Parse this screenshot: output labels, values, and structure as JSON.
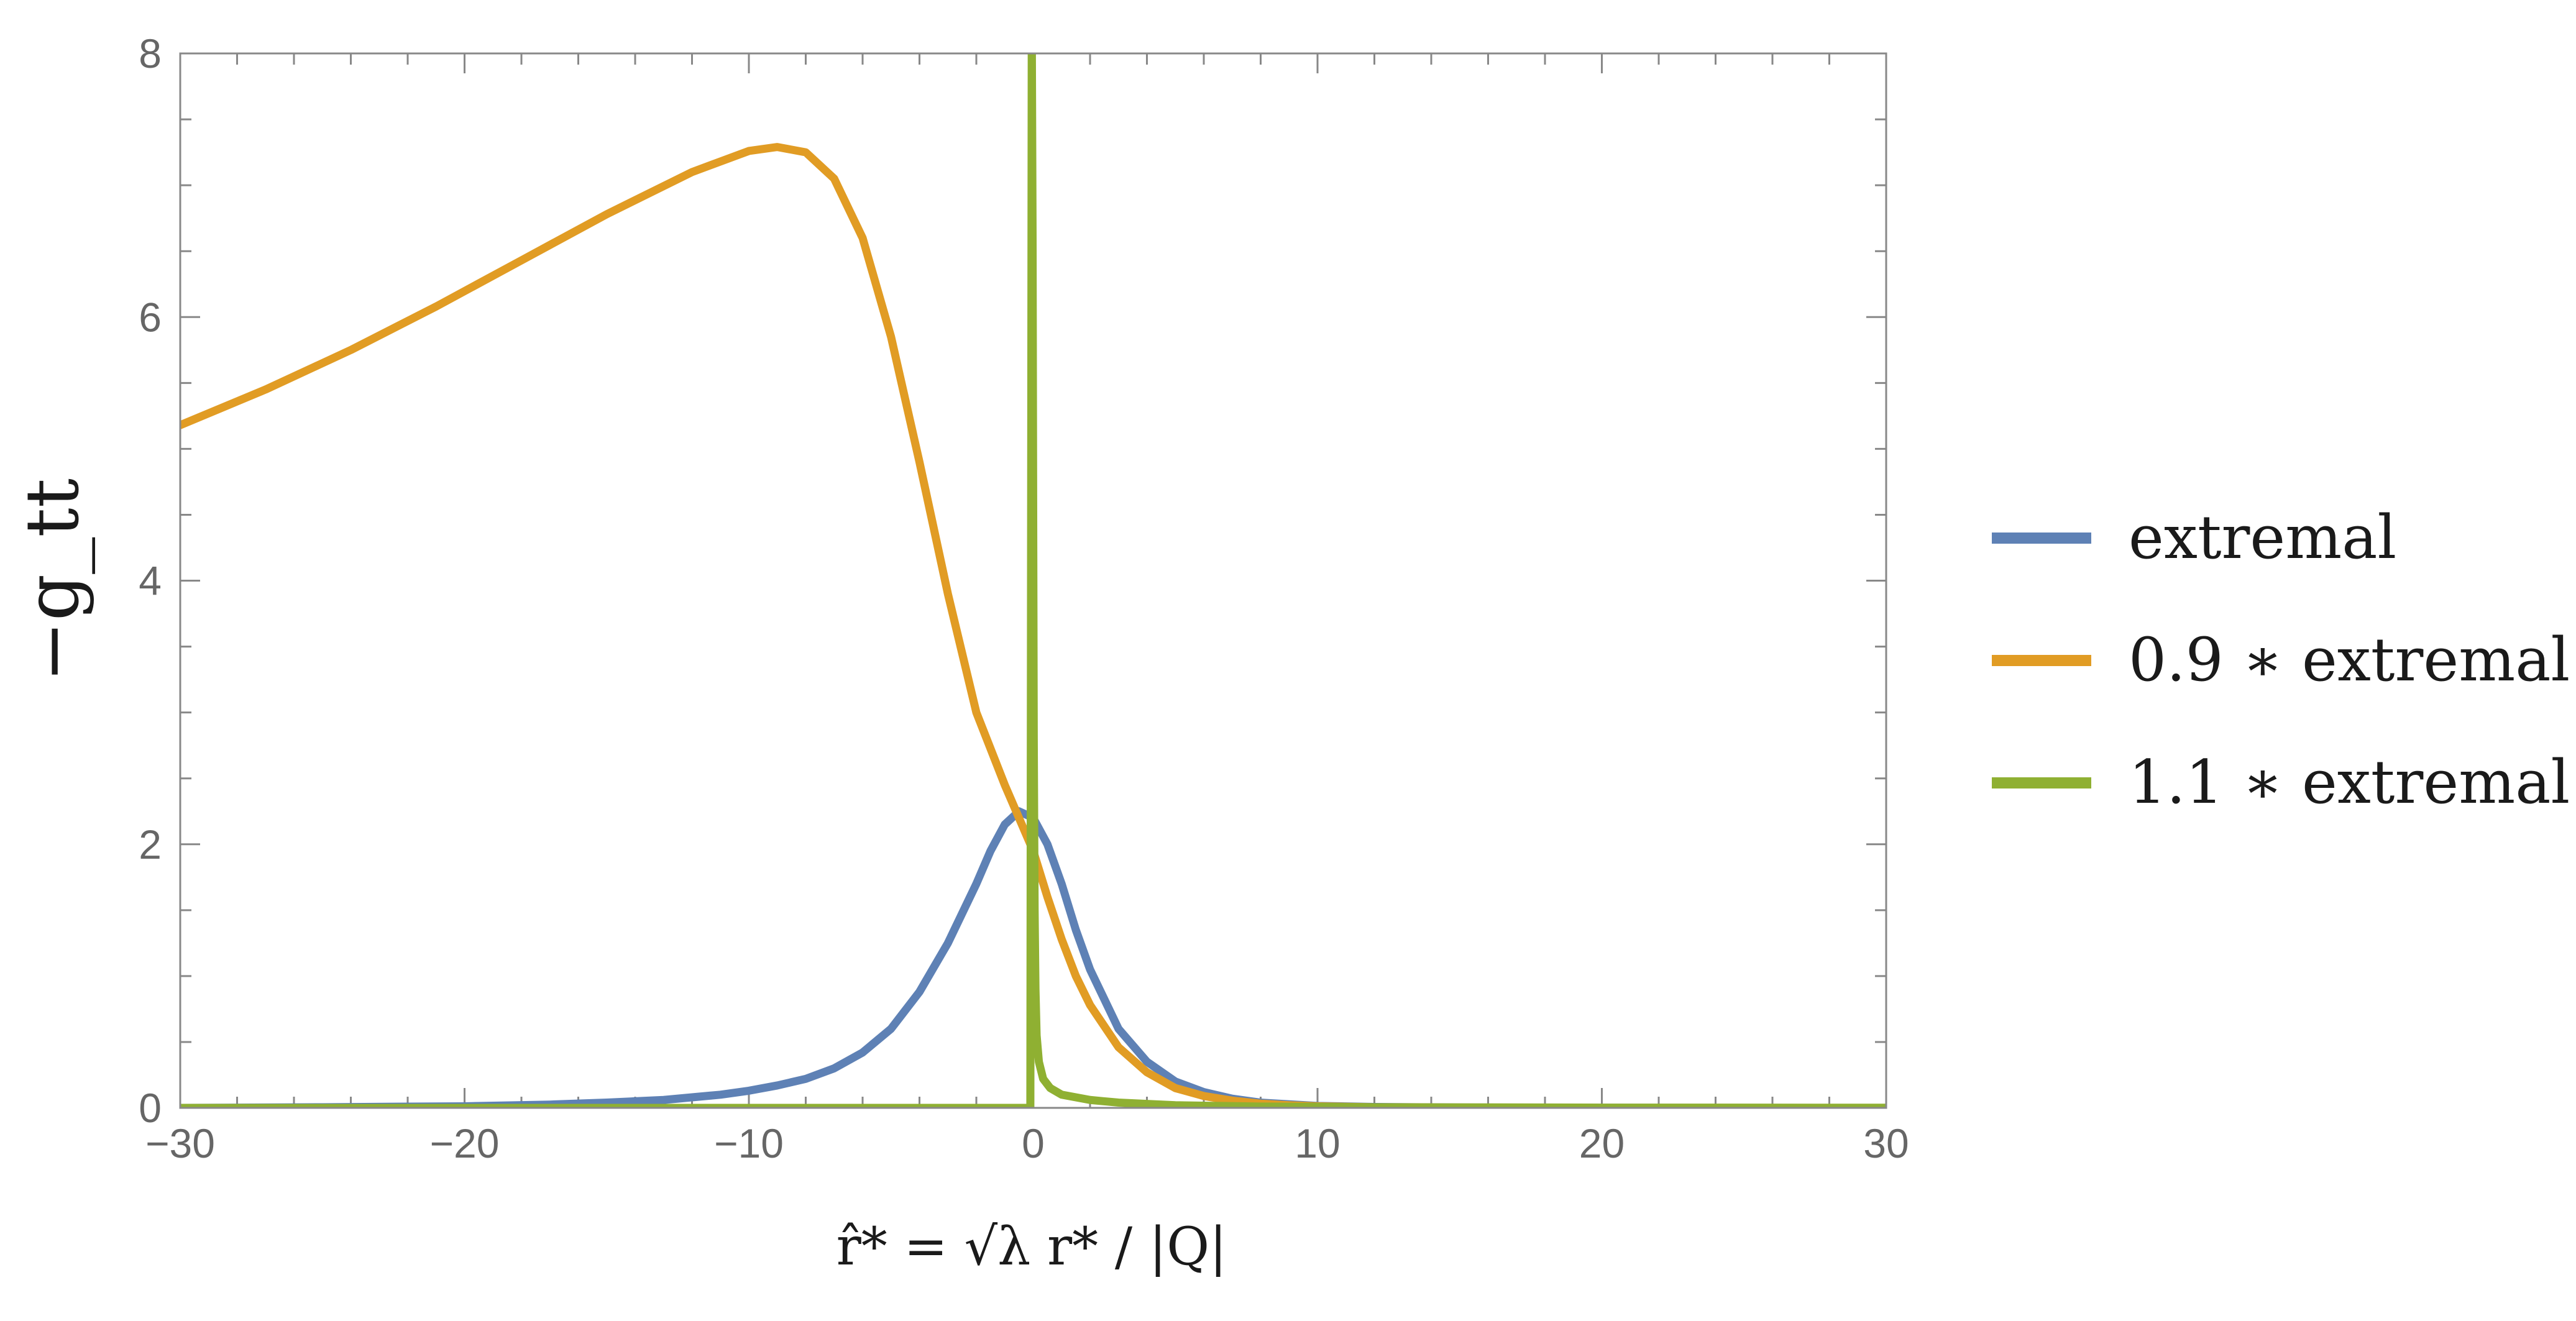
{
  "chart_data": {
    "type": "line",
    "title": "",
    "xlabel": "r̂* = √λ r* / |Q|",
    "ylabel": "−g_tt",
    "xlim": [
      -30,
      30
    ],
    "ylim": [
      0,
      8
    ],
    "xticks": [
      -30,
      -20,
      -10,
      0,
      10,
      20,
      30
    ],
    "xtick_labels": [
      "−30",
      "−20",
      "−10",
      "0",
      "10",
      "20",
      "30"
    ],
    "yticks": [
      0,
      2,
      4,
      6,
      8
    ],
    "ytick_labels": [
      "0",
      "2",
      "4",
      "6",
      "8"
    ],
    "grid": false,
    "legend_position": "right",
    "series": [
      {
        "name": "extremal",
        "color": "#5E81B5",
        "x": [
          -30,
          -25,
          -20,
          -17,
          -15,
          -13,
          -11,
          -10,
          -9,
          -8,
          -7,
          -6,
          -5,
          -4,
          -3,
          -2,
          -1.5,
          -1,
          -0.5,
          0,
          0.5,
          1,
          1.5,
          2,
          3,
          4,
          5,
          6,
          7,
          8,
          10,
          12,
          15,
          20,
          25,
          30
        ],
        "y": [
          0.0,
          0.005,
          0.012,
          0.025,
          0.04,
          0.06,
          0.1,
          0.13,
          0.17,
          0.22,
          0.3,
          0.42,
          0.6,
          0.88,
          1.25,
          1.7,
          1.95,
          2.15,
          2.25,
          2.2,
          2.0,
          1.7,
          1.35,
          1.05,
          0.6,
          0.35,
          0.2,
          0.12,
          0.07,
          0.04,
          0.015,
          0.007,
          0.003,
          0.001,
          0.0,
          0.0
        ]
      },
      {
        "name": "0.9 ∗ extremal",
        "color": "#E19C24",
        "x": [
          -30,
          -27,
          -24,
          -21,
          -18,
          -15,
          -12,
          -10,
          -9,
          -8,
          -7,
          -6,
          -5,
          -4,
          -3,
          -2,
          -1,
          0,
          0.5,
          1,
          1.5,
          2,
          3,
          4,
          5,
          6,
          7,
          8,
          9,
          10,
          12,
          15,
          20,
          25,
          30
        ],
        "y": [
          5.18,
          5.45,
          5.75,
          6.08,
          6.43,
          6.78,
          7.1,
          7.26,
          7.29,
          7.25,
          7.05,
          6.6,
          5.85,
          4.9,
          3.9,
          3.0,
          2.45,
          1.95,
          1.6,
          1.28,
          1.0,
          0.78,
          0.46,
          0.27,
          0.15,
          0.09,
          0.055,
          0.032,
          0.02,
          0.012,
          0.005,
          0.002,
          0.0,
          0.0,
          0.0
        ]
      },
      {
        "name": "1.1 ∗ extremal",
        "color": "#8FB032",
        "x": [
          -30,
          -20,
          -10,
          -2,
          -0.5,
          -0.1,
          -0.05,
          -0.02,
          0,
          0.02,
          0.05,
          0.08,
          0.12,
          0.2,
          0.35,
          0.6,
          1,
          2,
          3,
          5,
          8,
          12,
          20,
          30
        ],
        "y": [
          0.0,
          0.0,
          0.0,
          0.0,
          0.0,
          0.0,
          8.2,
          6.5,
          4.5,
          2.8,
          1.5,
          0.9,
          0.55,
          0.35,
          0.22,
          0.15,
          0.1,
          0.06,
          0.04,
          0.02,
          0.01,
          0.005,
          0.002,
          0.001
        ]
      }
    ]
  }
}
